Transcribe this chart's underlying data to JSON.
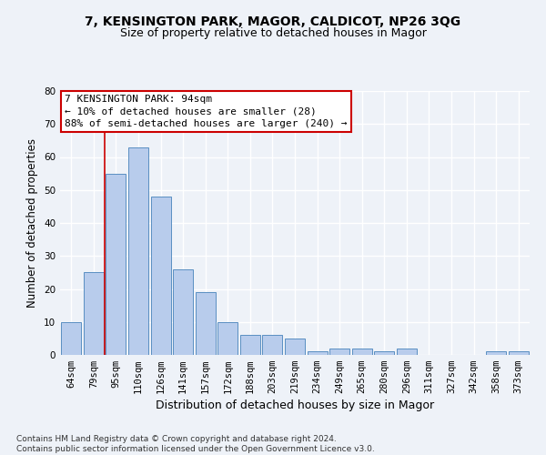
{
  "title": "7, KENSINGTON PARK, MAGOR, CALDICOT, NP26 3QG",
  "subtitle": "Size of property relative to detached houses in Magor",
  "xlabel": "Distribution of detached houses by size in Magor",
  "ylabel": "Number of detached properties",
  "categories": [
    "64sqm",
    "79sqm",
    "95sqm",
    "110sqm",
    "126sqm",
    "141sqm",
    "157sqm",
    "172sqm",
    "188sqm",
    "203sqm",
    "219sqm",
    "234sqm",
    "249sqm",
    "265sqm",
    "280sqm",
    "296sqm",
    "311sqm",
    "327sqm",
    "342sqm",
    "358sqm",
    "373sqm"
  ],
  "values": [
    10,
    25,
    55,
    63,
    48,
    26,
    19,
    10,
    6,
    6,
    5,
    1,
    2,
    2,
    1,
    2,
    0,
    0,
    0,
    1,
    1
  ],
  "bar_color": "#b8ccec",
  "bar_edge_color": "#5a8fc2",
  "highlight_index": 2,
  "highlight_line_color": "#cc0000",
  "annotation_text": "7 KENSINGTON PARK: 94sqm\n← 10% of detached houses are smaller (28)\n88% of semi-detached houses are larger (240) →",
  "annotation_box_color": "#ffffff",
  "annotation_box_edge_color": "#cc0000",
  "ylim": [
    0,
    80
  ],
  "yticks": [
    0,
    10,
    20,
    30,
    40,
    50,
    60,
    70,
    80
  ],
  "footer_text": "Contains HM Land Registry data © Crown copyright and database right 2024.\nContains public sector information licensed under the Open Government Licence v3.0.",
  "background_color": "#eef2f8",
  "plot_background_color": "#eef2f8",
  "grid_color": "#ffffff",
  "title_fontsize": 10,
  "subtitle_fontsize": 9,
  "axis_label_fontsize": 8.5,
  "tick_fontsize": 7.5,
  "annotation_fontsize": 8,
  "footer_fontsize": 6.5
}
